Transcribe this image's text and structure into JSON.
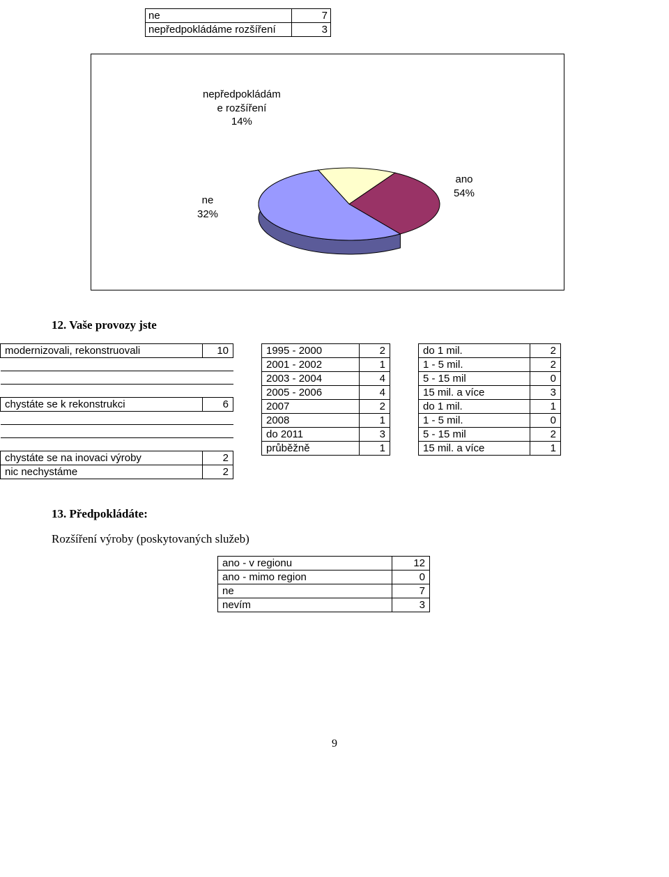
{
  "topTable": {
    "rows": [
      {
        "label": "ne",
        "value": "7"
      },
      {
        "label": "nepředpokládáme rozšíření",
        "value": "3"
      }
    ]
  },
  "pie": {
    "labels": {
      "top": {
        "line1": "nepředpokládám",
        "line2": "e rozšíření",
        "pct": "14%"
      },
      "left": {
        "line1": "ne",
        "pct": "32%"
      },
      "right": {
        "line1": "ano",
        "pct": "54%"
      }
    },
    "slices": [
      {
        "name": "ano",
        "pct": 54,
        "color": "#9999ff"
      },
      {
        "name": "ne",
        "pct": 32,
        "color": "#993366"
      },
      {
        "name": "nepredpokladame",
        "pct": 14,
        "color": "#ffffcc"
      }
    ],
    "stroke": "#000000"
  },
  "q12": {
    "title": "12. Vaše provozy jste",
    "left": [
      {
        "label": "modernizovali, rekonstruovali",
        "value": "10"
      },
      {
        "label": "chystáte se k rekonstrukci",
        "value": "6"
      },
      {
        "label": "chystáte se na inovaci výroby",
        "value": "2"
      },
      {
        "label": "nic nechystáme",
        "value": "2"
      }
    ],
    "middle": [
      {
        "label": "1995 - 2000",
        "value": "2"
      },
      {
        "label": "2001 - 2002",
        "value": "1"
      },
      {
        "label": "2003 - 2004",
        "value": "4"
      },
      {
        "label": "2005 - 2006",
        "value": "4"
      },
      {
        "label": "2007",
        "value": "2"
      },
      {
        "label": "2008",
        "value": "1"
      },
      {
        "label": "do 2011",
        "value": "3"
      },
      {
        "label": "průběžně",
        "value": "1"
      }
    ],
    "right": [
      {
        "label": "do 1 mil.",
        "value": "2"
      },
      {
        "label": "1 - 5 mil.",
        "value": "2"
      },
      {
        "label": "5 - 15 mil",
        "value": "0"
      },
      {
        "label": "15 mil. a více",
        "value": "3"
      },
      {
        "label": "do 1 mil.",
        "value": "1"
      },
      {
        "label": "1 - 5 mil.",
        "value": "0"
      },
      {
        "label": "5 - 15 mil",
        "value": "2"
      },
      {
        "label": "15 mil. a více",
        "value": "1"
      }
    ]
  },
  "q13": {
    "title": "13. Předpokládáte:",
    "subtitle": "Rozšíření výroby (poskytovaných služeb)",
    "rows": [
      {
        "label": "ano - v regionu",
        "value": "12"
      },
      {
        "label": "ano - mimo region",
        "value": "0"
      },
      {
        "label": "ne",
        "value": "7"
      },
      {
        "label": "nevím",
        "value": "3"
      }
    ]
  },
  "pageNumber": "9"
}
